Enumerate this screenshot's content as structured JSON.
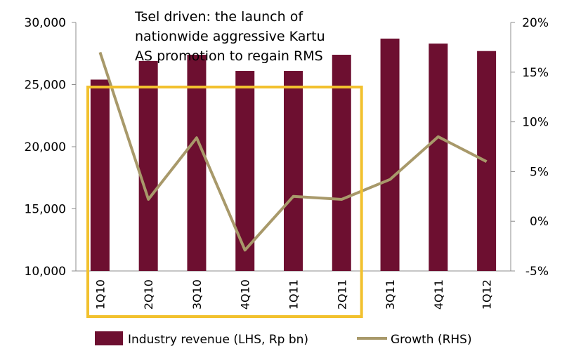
{
  "chart_data": {
    "type": "bar",
    "categories": [
      "1Q10",
      "2Q10",
      "3Q10",
      "4Q10",
      "1Q11",
      "2Q11",
      "3Q11",
      "4Q11",
      "1Q12"
    ],
    "series": [
      {
        "name": "Industry revenue (LHS, Rp bn)",
        "type": "bar",
        "axis": "left",
        "color": "#6d0f30",
        "values": [
          25400,
          26900,
          27400,
          26100,
          26100,
          27400,
          28700,
          28300,
          27700
        ]
      },
      {
        "name": "Growth (RHS)",
        "type": "line",
        "axis": "right",
        "color": "#a8996a",
        "values": [
          17.0,
          2.2,
          8.4,
          -2.9,
          2.5,
          2.2,
          4.2,
          8.5,
          6.0
        ]
      }
    ],
    "left_axis": {
      "range": [
        10000,
        30000
      ],
      "ticks": [
        10000,
        15000,
        20000,
        25000,
        30000
      ],
      "tick_labels": [
        "10,000",
        "15,000",
        "20,000",
        "25,000",
        "30,000"
      ]
    },
    "right_axis": {
      "range": [
        -5,
        20
      ],
      "ticks": [
        -5,
        0,
        5,
        10,
        15,
        20
      ],
      "tick_labels": [
        "-5%",
        "0%",
        "5%",
        "10%",
        "15%",
        "20%"
      ]
    },
    "annotation": {
      "lines": [
        "Tsel driven: the launch of",
        "nationwide aggressive Kartu",
        "AS promotion to regain RMS"
      ],
      "highlight_categories": [
        "1Q10",
        "2Q10",
        "3Q10",
        "4Q10",
        "1Q11",
        "2Q11"
      ],
      "highlight_color": "#f2c12e"
    },
    "legend": {
      "position": "bottom",
      "items": [
        "Industry revenue (LHS, Rp bn)",
        "Growth (RHS)"
      ]
    },
    "grid": false
  }
}
